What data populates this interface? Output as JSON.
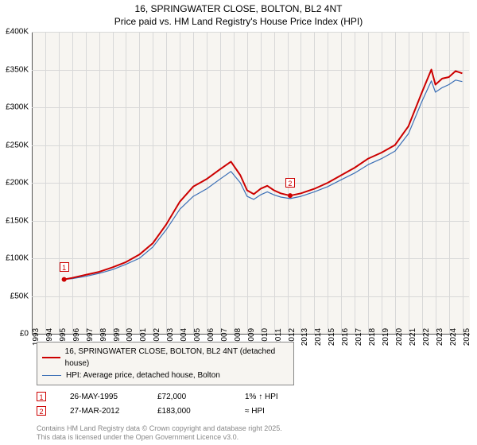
{
  "title_line1": "16, SPRINGWATER CLOSE, BOLTON, BL2 4NT",
  "title_line2": "Price paid vs. HM Land Registry's House Price Index (HPI)",
  "chart": {
    "type": "line",
    "background_color": "#f7f5f1",
    "grid_color": "#d8d8d8",
    "axis_color": "#555555",
    "x": {
      "min": 1993,
      "max": 2025.5,
      "ticks": [
        1993,
        1994,
        1995,
        1996,
        1997,
        1998,
        1999,
        2000,
        2001,
        2002,
        2003,
        2004,
        2005,
        2006,
        2007,
        2008,
        2009,
        2010,
        2011,
        2012,
        2013,
        2014,
        2015,
        2016,
        2017,
        2018,
        2019,
        2020,
        2021,
        2022,
        2023,
        2024,
        2025
      ],
      "label_fontsize": 10,
      "rotation": -90
    },
    "y": {
      "min": 0,
      "max": 400000,
      "ticks": [
        0,
        50000,
        100000,
        150000,
        200000,
        250000,
        300000,
        350000,
        400000
      ],
      "tick_labels": [
        "£0",
        "£50K",
        "£100K",
        "£150K",
        "£200K",
        "£250K",
        "£300K",
        "£350K",
        "£400K"
      ],
      "label_fontsize": 10
    },
    "series": [
      {
        "name": "price_paid",
        "label": "16, SPRINGWATER CLOSE, BOLTON, BL2 4NT (detached house)",
        "color": "#cc0000",
        "line_width": 2,
        "points": [
          [
            1995.4,
            72000
          ],
          [
            1996,
            74000
          ],
          [
            1997,
            78000
          ],
          [
            1998,
            82000
          ],
          [
            1999,
            88000
          ],
          [
            2000,
            95000
          ],
          [
            2001,
            105000
          ],
          [
            2002,
            120000
          ],
          [
            2003,
            145000
          ],
          [
            2004,
            175000
          ],
          [
            2005,
            195000
          ],
          [
            2006,
            205000
          ],
          [
            2007,
            218000
          ],
          [
            2007.8,
            228000
          ],
          [
            2008.5,
            210000
          ],
          [
            2009,
            190000
          ],
          [
            2009.5,
            185000
          ],
          [
            2010,
            192000
          ],
          [
            2010.5,
            196000
          ],
          [
            2011,
            190000
          ],
          [
            2011.5,
            186000
          ],
          [
            2012.2,
            183000
          ],
          [
            2013,
            186000
          ],
          [
            2014,
            192000
          ],
          [
            2015,
            200000
          ],
          [
            2016,
            210000
          ],
          [
            2017,
            220000
          ],
          [
            2018,
            232000
          ],
          [
            2019,
            240000
          ],
          [
            2020,
            250000
          ],
          [
            2021,
            275000
          ],
          [
            2022,
            320000
          ],
          [
            2022.7,
            350000
          ],
          [
            2023,
            330000
          ],
          [
            2023.5,
            338000
          ],
          [
            2024,
            340000
          ],
          [
            2024.5,
            348000
          ],
          [
            2025,
            345000
          ]
        ]
      },
      {
        "name": "hpi",
        "label": "HPI: Average price, detached house, Bolton",
        "color": "#3b6fb6",
        "line_width": 1.2,
        "points": [
          [
            1995.4,
            72000
          ],
          [
            1996,
            73000
          ],
          [
            1997,
            76000
          ],
          [
            1998,
            80000
          ],
          [
            1999,
            85000
          ],
          [
            2000,
            92000
          ],
          [
            2001,
            100000
          ],
          [
            2002,
            115000
          ],
          [
            2003,
            138000
          ],
          [
            2004,
            165000
          ],
          [
            2005,
            182000
          ],
          [
            2006,
            192000
          ],
          [
            2007,
            205000
          ],
          [
            2007.8,
            215000
          ],
          [
            2008.5,
            200000
          ],
          [
            2009,
            182000
          ],
          [
            2009.5,
            178000
          ],
          [
            2010,
            184000
          ],
          [
            2010.5,
            188000
          ],
          [
            2011,
            184000
          ],
          [
            2011.5,
            181000
          ],
          [
            2012.2,
            179000
          ],
          [
            2013,
            182000
          ],
          [
            2014,
            188000
          ],
          [
            2015,
            195000
          ],
          [
            2016,
            204000
          ],
          [
            2017,
            213000
          ],
          [
            2018,
            224000
          ],
          [
            2019,
            232000
          ],
          [
            2020,
            242000
          ],
          [
            2021,
            265000
          ],
          [
            2022,
            308000
          ],
          [
            2022.7,
            335000
          ],
          [
            2023,
            320000
          ],
          [
            2023.5,
            326000
          ],
          [
            2024,
            330000
          ],
          [
            2024.5,
            336000
          ],
          [
            2025,
            334000
          ]
        ]
      }
    ],
    "markers": [
      {
        "n": "1",
        "x": 1995.4,
        "y": 72000,
        "color": "#cc0000"
      },
      {
        "n": "2",
        "x": 2012.2,
        "y": 183000,
        "color": "#cc0000"
      }
    ]
  },
  "legend": {
    "rows": [
      {
        "color": "#cc0000",
        "width": 2,
        "label": "16, SPRINGWATER CLOSE, BOLTON, BL2 4NT (detached house)"
      },
      {
        "color": "#3b6fb6",
        "width": 1,
        "label": "HPI: Average price, detached house, Bolton"
      }
    ]
  },
  "events": [
    {
      "n": "1",
      "color": "#cc0000",
      "date": "26-MAY-1995",
      "price": "£72,000",
      "delta": "1% ↑ HPI"
    },
    {
      "n": "2",
      "color": "#cc0000",
      "date": "27-MAR-2012",
      "price": "£183,000",
      "delta": "≈ HPI"
    }
  ],
  "footer_line1": "Contains HM Land Registry data © Crown copyright and database right 2025.",
  "footer_line2": "This data is licensed under the Open Government Licence v3.0."
}
